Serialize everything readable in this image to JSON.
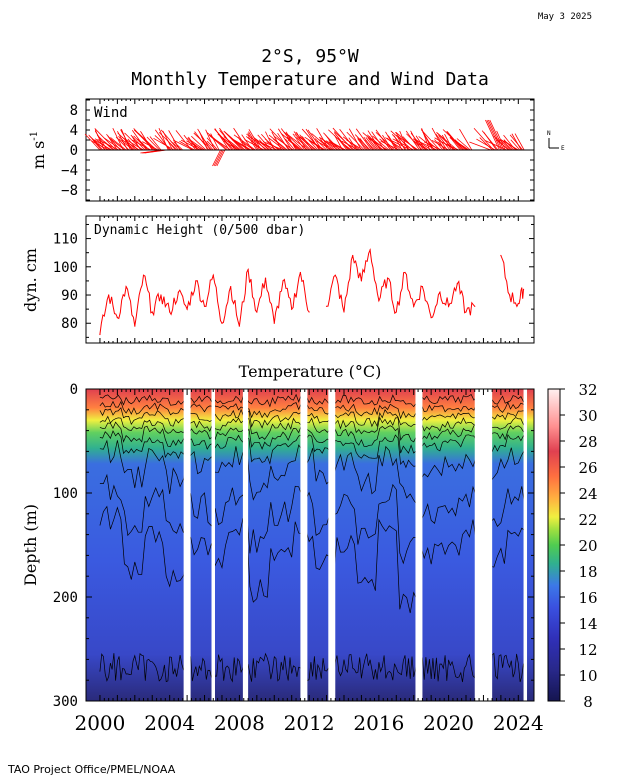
{
  "date_stamp": "May  3 2025",
  "title_line1": "2°S, 95°W",
  "title_line2": "Monthly Temperature and Wind Data",
  "footer": "TAO Project Office/PMEL/NOAA",
  "chart_data": [
    {
      "type": "line",
      "panel": "wind",
      "title": "Wind",
      "ylabel": "m s",
      "ylabel_sup": "-1",
      "ylim": [
        -10,
        10
      ],
      "yticks": [
        "8",
        "4",
        "0",
        "−4",
        "−8"
      ],
      "compass": {
        "north": "N",
        "east": "E"
      },
      "series_color": "#ff0000",
      "description": "wind stick vectors, mostly southeasterly, roughly 3-7 m/s, occasional northward/westward sticks around 2005 and 2007"
    },
    {
      "type": "line",
      "panel": "dynamic_height",
      "title": "Dynamic Height (0/500 dbar)",
      "ylabel": "dyn. cm",
      "ylim": [
        73,
        118
      ],
      "yticks": [
        "110",
        "100",
        "90",
        "80"
      ],
      "series_color": "#ff0000",
      "x": [
        2000.0,
        2000.5,
        2001.0,
        2001.5,
        2002.0,
        2002.5,
        2003.0,
        2003.5,
        2004.0,
        2004.5,
        2005.0,
        2005.5,
        2006.0,
        2006.5,
        2007.0,
        2007.5,
        2008.0,
        2008.5,
        2009.0,
        2009.5,
        2010.0,
        2010.5,
        2011.0,
        2011.5,
        2012.0,
        2012.5,
        2013.0,
        2013.5,
        2014.0,
        2014.5,
        2015.0,
        2015.5,
        2016.0,
        2016.5,
        2017.0,
        2017.5,
        2018.0,
        2018.5,
        2019.0,
        2019.5,
        2020.0,
        2020.5,
        2021.0,
        2021.5,
        2022.5,
        2023.0,
        2023.5,
        2024.0,
        2024.3
      ],
      "y": [
        76,
        90,
        82,
        93,
        79,
        97,
        84,
        90,
        84,
        91,
        85,
        95,
        86,
        97,
        80,
        93,
        79,
        99,
        84,
        96,
        80,
        95,
        85,
        98,
        84,
        null,
        86,
        97,
        84,
        104,
        95,
        106,
        88,
        96,
        84,
        98,
        86,
        93,
        82,
        91,
        86,
        94,
        84,
        86,
        null,
        104,
        90,
        87,
        92
      ]
    },
    {
      "type": "heatmap",
      "panel": "temperature",
      "title": "Temperature (°C)",
      "ylabel": "Depth (m)",
      "ylim": [
        300,
        0
      ],
      "yticks": [
        "0",
        "100",
        "200",
        "300"
      ],
      "xticks": [
        "2000",
        "2004",
        "2008",
        "2012",
        "2016",
        "2020",
        "2024"
      ],
      "xlim": [
        1999.2,
        2024.9
      ],
      "colorbar_ticks": [
        "32",
        "30",
        "28",
        "26",
        "24",
        "22",
        "20",
        "18",
        "16",
        "14",
        "12",
        "10",
        "8"
      ],
      "colorbar_range": [
        8,
        32
      ],
      "data_gaps": [
        [
          2004.8,
          2005.2
        ],
        [
          2006.4,
          2006.6
        ],
        [
          2008.2,
          2008.5
        ],
        [
          2011.5,
          2011.9
        ],
        [
          2013.1,
          2013.5
        ],
        [
          2018.1,
          2018.5
        ],
        [
          2021.5,
          2022.5
        ],
        [
          2024.3,
          2024.5
        ]
      ],
      "thermocline_depth_m": [
        55,
        75,
        60,
        80,
        65,
        70,
        60,
        85,
        70,
        60,
        75,
        65,
        80,
        60,
        90,
        70,
        65,
        60,
        70,
        60
      ]
    }
  ]
}
